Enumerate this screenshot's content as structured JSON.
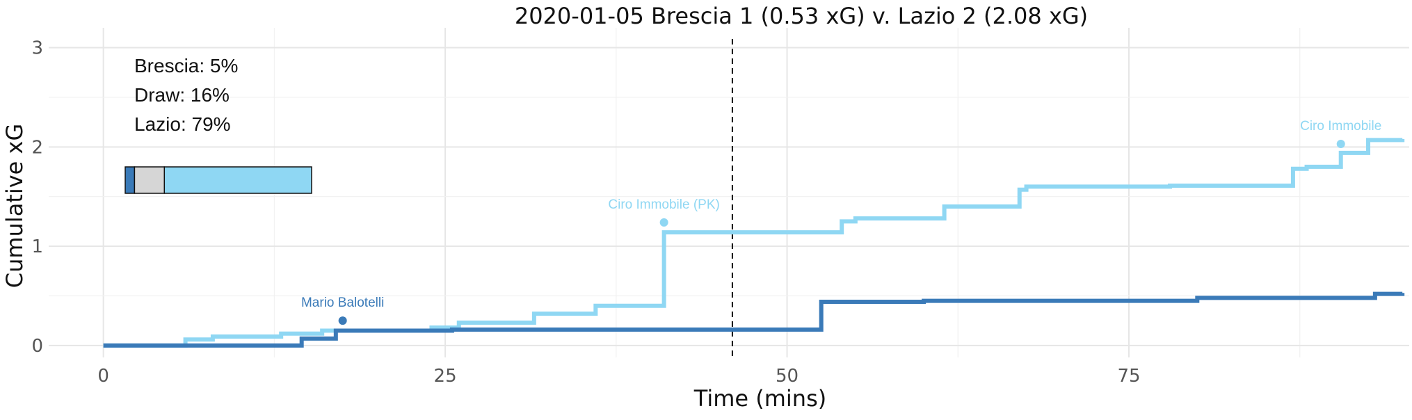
{
  "chart_data": {
    "type": "line",
    "title": "2020-01-05 Brescia 1 (0.53 xG) v. Lazio 2 (2.08 xG)",
    "xlabel": "Time (mins)",
    "ylabel": "Cumulative xG",
    "xlim": [
      -4,
      95.5
    ],
    "ylim": [
      -0.12,
      3.2
    ],
    "x_ticks": [
      0,
      25,
      50,
      75
    ],
    "y_ticks": [
      0,
      1,
      2,
      3
    ],
    "grid": true,
    "halftime_line": 46,
    "series": [
      {
        "name": "Brescia",
        "color": "#3a7ab8",
        "step_x": [
          0,
          14.5,
          17,
          25.5,
          52.5,
          60,
          80,
          93,
          95
        ],
        "step_y": [
          0,
          0.07,
          0.15,
          0.16,
          0.44,
          0.45,
          0.48,
          0.52,
          0.53
        ]
      },
      {
        "name": "Lazio",
        "color": "#8fd7f3",
        "step_x": [
          0,
          6,
          8,
          13,
          16,
          24,
          26,
          31.5,
          36,
          41,
          54,
          55,
          61.5,
          67,
          67.5,
          78,
          87,
          88,
          90.5,
          92.5,
          95
        ],
        "step_y": [
          0,
          0.06,
          0.09,
          0.12,
          0.15,
          0.18,
          0.23,
          0.32,
          0.4,
          1.14,
          1.25,
          1.28,
          1.4,
          1.57,
          1.6,
          1.61,
          1.78,
          1.8,
          1.94,
          2.07,
          2.08
        ]
      }
    ],
    "goals": [
      {
        "team": "Brescia",
        "player": "Mario Balotelli",
        "minute": 17.5,
        "xg": 0.25,
        "color": "#3a7ab8"
      },
      {
        "team": "Lazio",
        "player": "Ciro Immobile (PK)",
        "minute": 41,
        "xg": 1.24,
        "color": "#8fd7f3"
      },
      {
        "team": "Lazio",
        "player": "Ciro Immobile",
        "minute": 90.5,
        "xg": 2.03,
        "color": "#8fd7f3"
      }
    ],
    "probabilities": [
      {
        "label": "Brescia: 5%",
        "value": 0.05,
        "color": "#3a7ab8"
      },
      {
        "label": "Draw: 16%",
        "value": 0.16,
        "color": "#d6d6d6"
      },
      {
        "label": "Lazio: 79%",
        "value": 0.79,
        "color": "#8fd7f3"
      }
    ]
  }
}
